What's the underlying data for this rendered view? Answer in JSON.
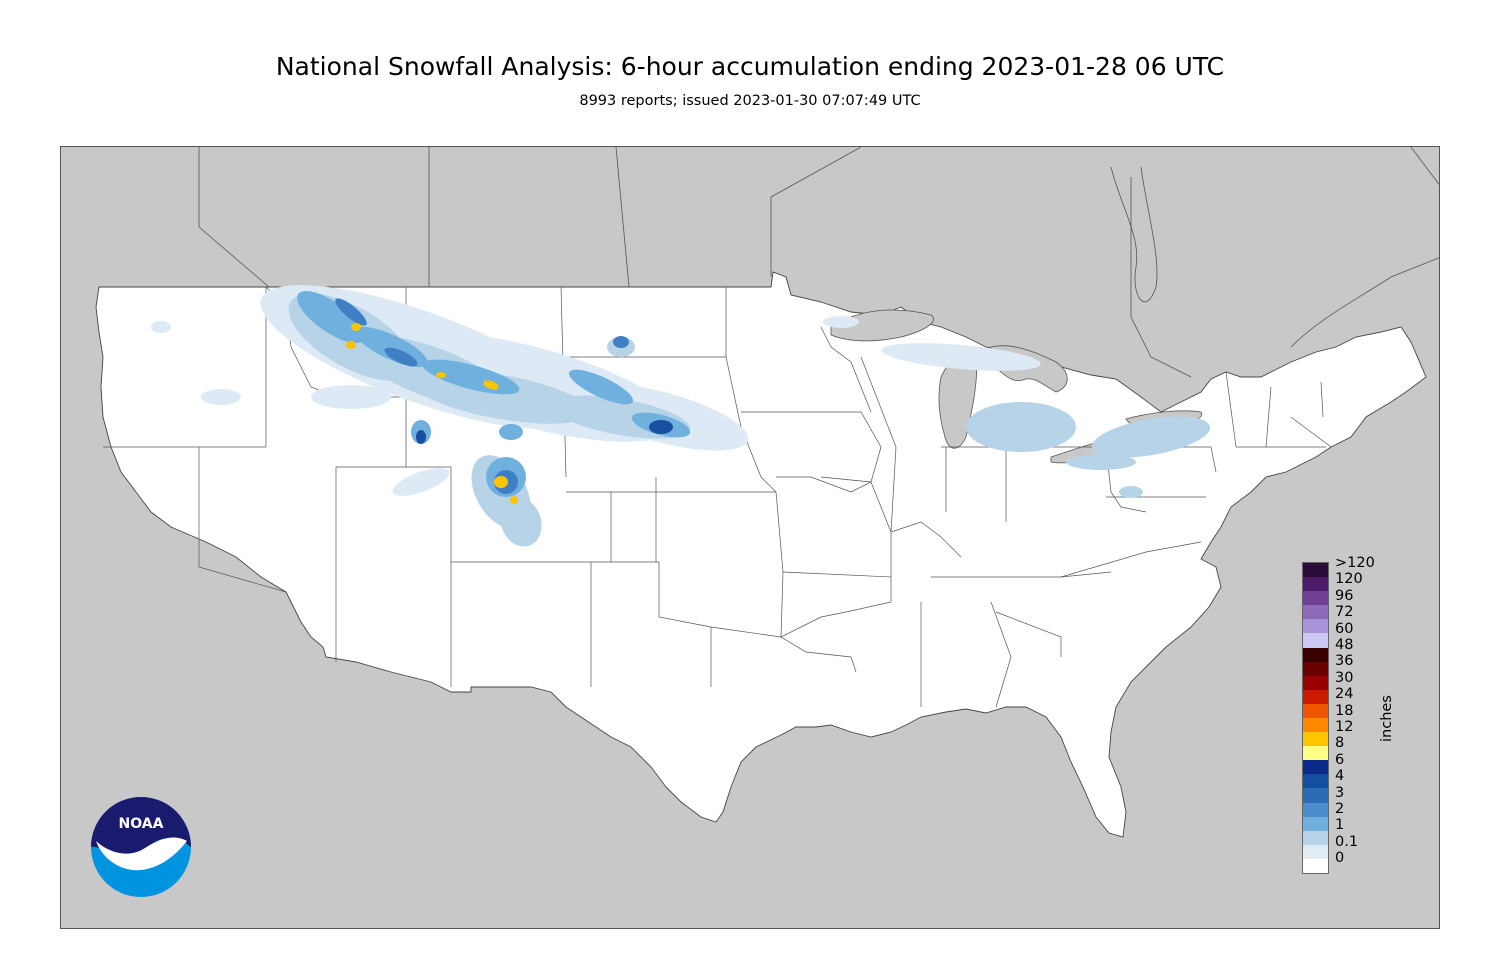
{
  "title": "National Snowfall Analysis: 6-hour accumulation ending 2023-01-28 06 UTC",
  "subtitle": "8993 reports; issued 2023-01-30 07:07:49 UTC",
  "map": {
    "land_outside_color": "#c8c8c8",
    "conus_color": "#ffffff",
    "water_color": "#c8c8c8",
    "border_color": "#555555"
  },
  "legend": {
    "units": "inches",
    "labels": [
      ">120",
      "120",
      "96",
      "72",
      "60",
      "48",
      "36",
      "30",
      "24",
      "18",
      "12",
      "8",
      "6",
      "4",
      "3",
      "2",
      "1",
      "0.1",
      "0"
    ],
    "colors": [
      "#2b0b3a",
      "#4e1a6a",
      "#6f3f96",
      "#8c6ab8",
      "#a894d8",
      "#cbc8f5",
      "#3a0000",
      "#6a0000",
      "#9a0000",
      "#cc1a00",
      "#ee5500",
      "#ff8800",
      "#ffc400",
      "#ffff88",
      "#0a2a8c",
      "#124fa0",
      "#2a6db5",
      "#4a8ccc",
      "#6fb0de",
      "#b6d3e8",
      "#e2ecf5",
      "#ffffff"
    ]
  },
  "logo": {
    "text": "NOAA",
    "dark_blue": "#1a1a6e",
    "light_blue": "#0094e0"
  }
}
